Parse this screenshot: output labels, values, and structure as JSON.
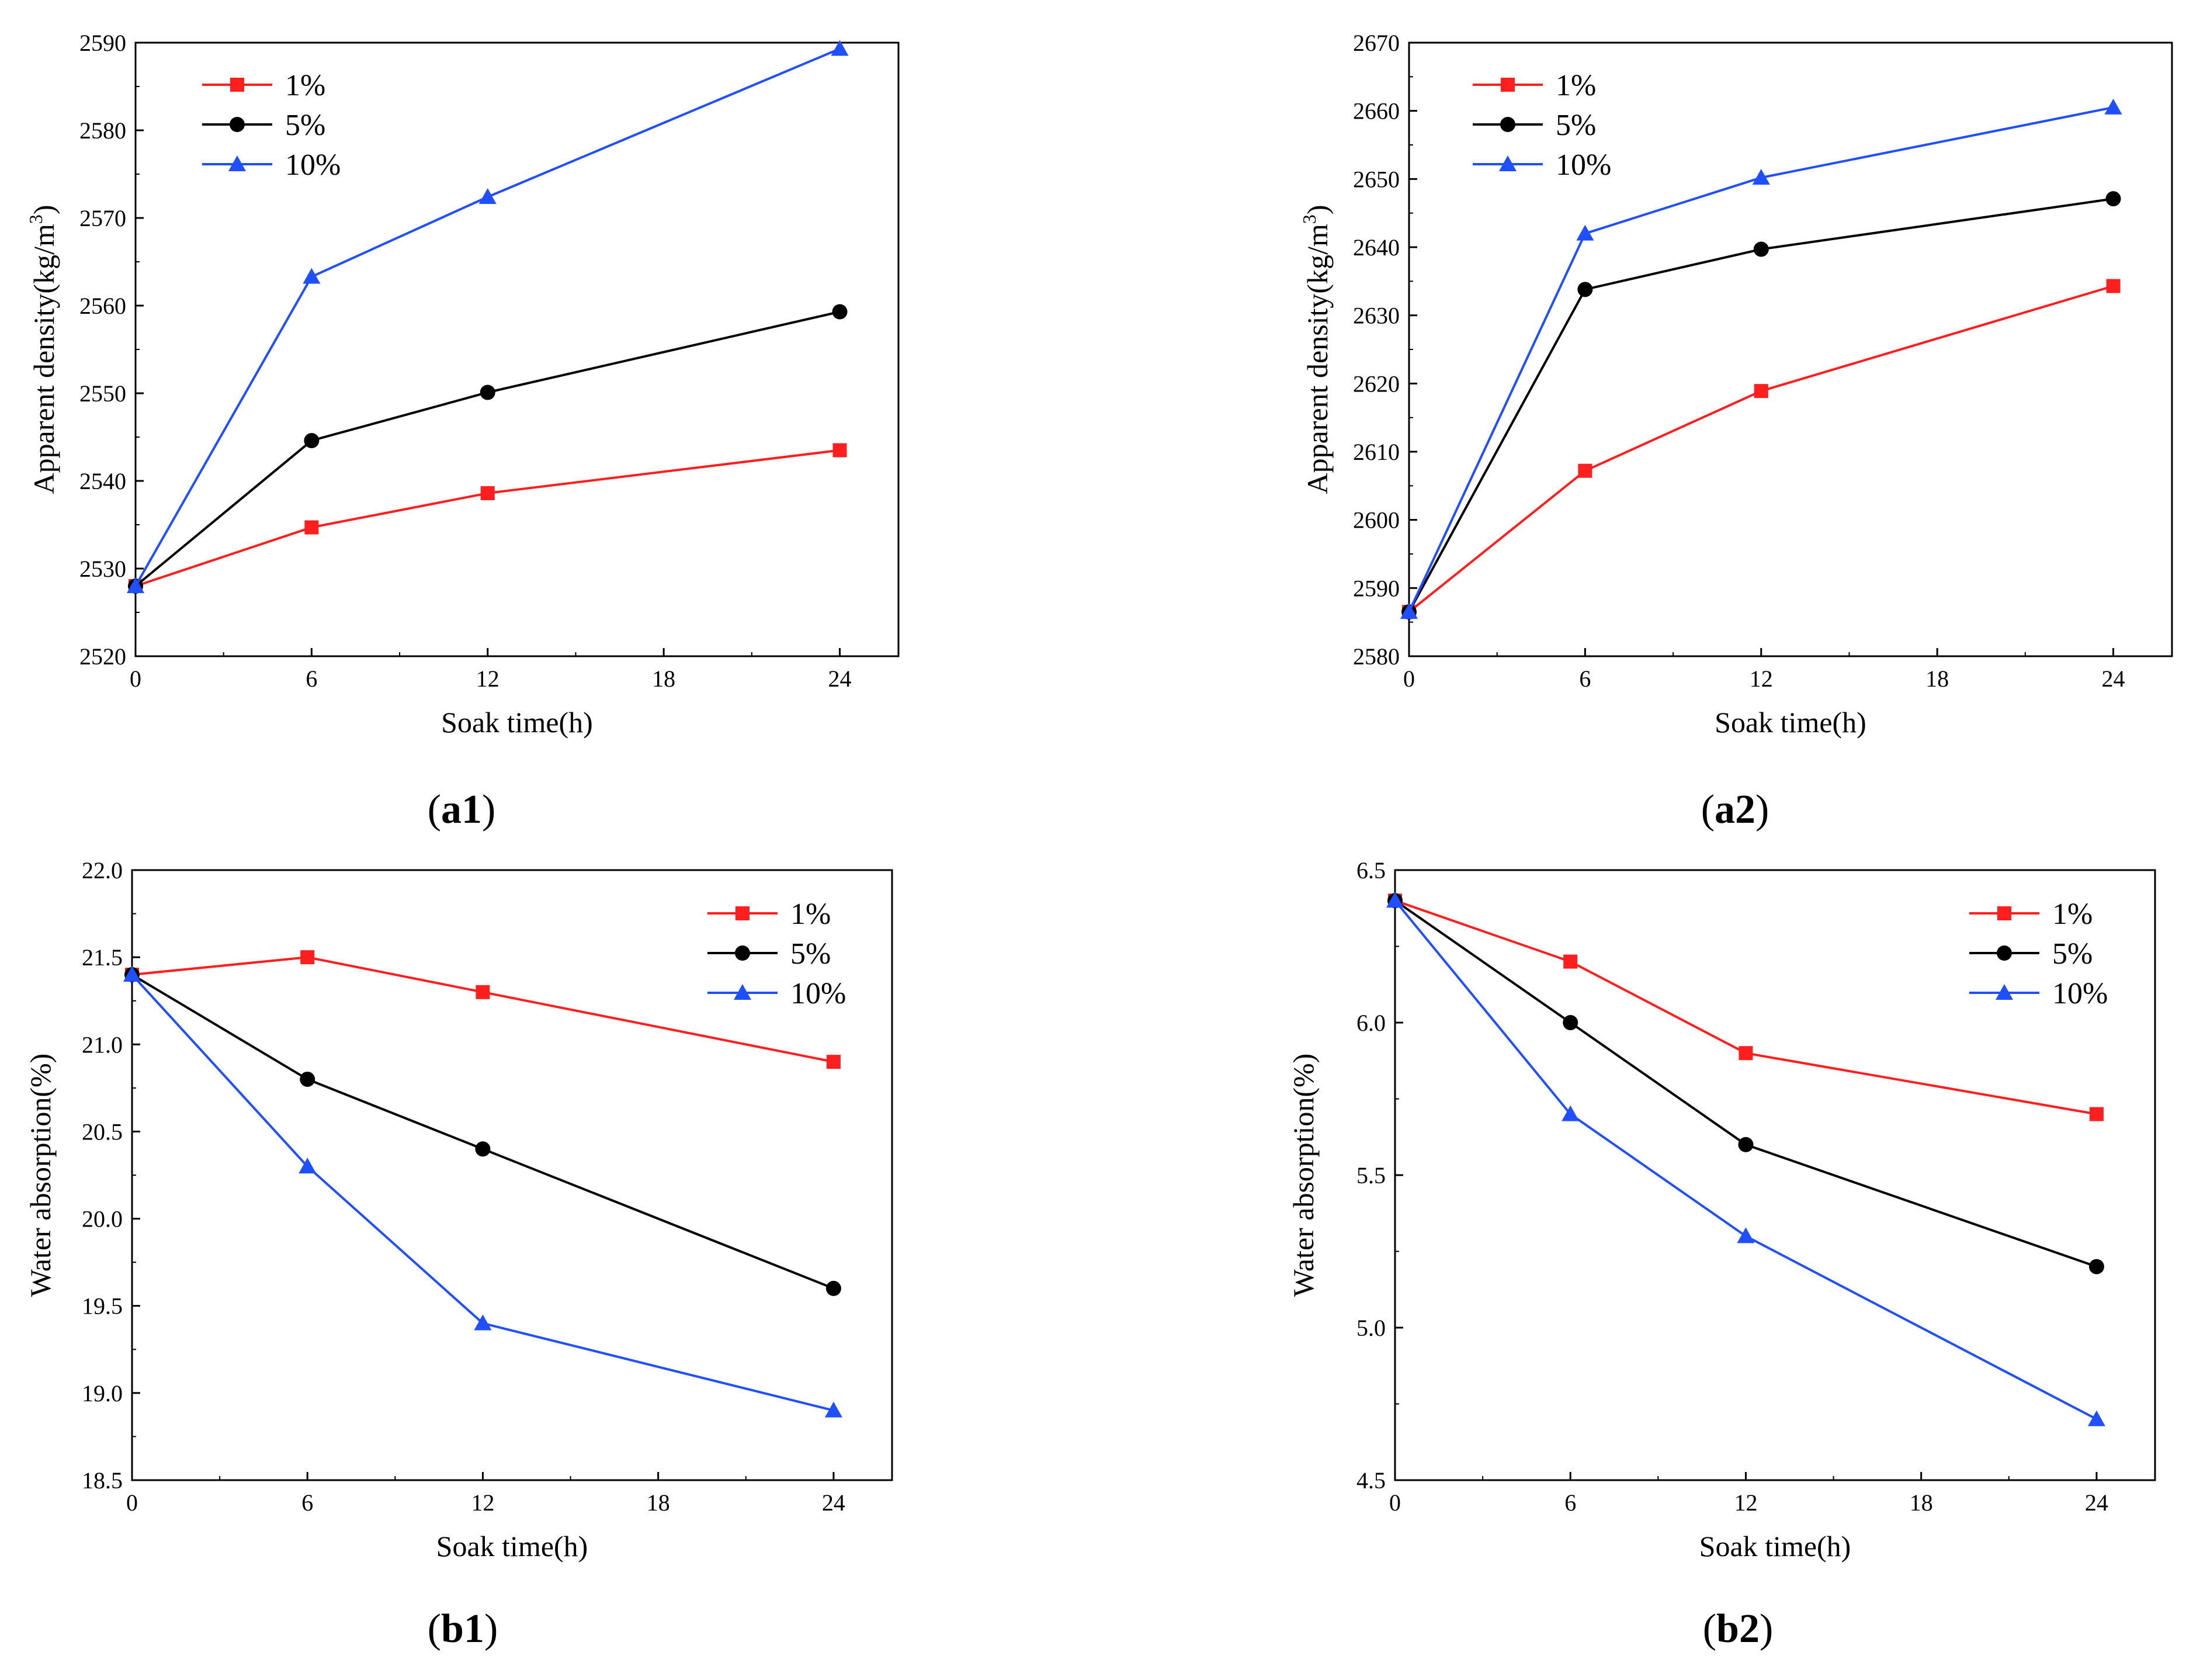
{
  "figure": {
    "panels": [
      "a1",
      "a2",
      "b1",
      "b2"
    ]
  },
  "colors": {
    "red": "#ff1f1f",
    "black": "#000000",
    "blue": "#1f4fff"
  },
  "chart_data": [
    {
      "id": "a1",
      "type": "line",
      "caption": "a1",
      "xlabel": "Soak time(h)",
      "ylabel": "Apparent density(kg/m3)",
      "ylabel_base": "Apparent density(kg/m",
      "ylabel_sup": "3",
      "ylabel_end": ")",
      "xlim": [
        0,
        26
      ],
      "ylim": [
        2520,
        2590
      ],
      "xticks": [
        0,
        6,
        12,
        18,
        24
      ],
      "xtick_labels": [
        "0",
        "6",
        "12",
        "18",
        "24"
      ],
      "yticks": [
        2520,
        2530,
        2540,
        2550,
        2560,
        2570,
        2580,
        2590
      ],
      "ytick_labels": [
        "2520",
        "2530",
        "2540",
        "2550",
        "2560",
        "2570",
        "2580",
        "2590"
      ],
      "legend_position": "top-left",
      "x": [
        0,
        6,
        12,
        24
      ],
      "series": [
        {
          "name": "1%",
          "marker": "square",
          "color": "#ff1f1f",
          "values": [
            2528,
            2534.7,
            2538.6,
            2543.5
          ]
        },
        {
          "name": "5%",
          "marker": "circle",
          "color": "#000000",
          "values": [
            2528,
            2544.6,
            2550.1,
            2559.3
          ]
        },
        {
          "name": "10%",
          "marker": "triangle",
          "color": "#1f4fff",
          "values": [
            2528,
            2563.3,
            2572.4,
            2589.3
          ]
        }
      ]
    },
    {
      "id": "a2",
      "type": "line",
      "caption": "a2",
      "xlabel": "Soak time(h)",
      "ylabel": "Apparent density(kg/m3)",
      "ylabel_base": "Apparent density(kg/m",
      "ylabel_sup": "3",
      "ylabel_end": ")",
      "xlim": [
        0,
        26
      ],
      "ylim": [
        2580,
        2670
      ],
      "xticks": [
        0,
        6,
        12,
        18,
        24
      ],
      "xtick_labels": [
        "0",
        "6",
        "12",
        "18",
        "24"
      ],
      "yticks": [
        2580,
        2590,
        2600,
        2610,
        2620,
        2630,
        2640,
        2650,
        2660,
        2670
      ],
      "ytick_labels": [
        "2580",
        "2590",
        "2600",
        "2610",
        "2620",
        "2630",
        "2640",
        "2650",
        "2660",
        "2670"
      ],
      "legend_position": "top-left",
      "x": [
        0,
        6,
        12,
        24
      ],
      "series": [
        {
          "name": "1%",
          "marker": "square",
          "color": "#ff1f1f",
          "values": [
            2586.5,
            2607.2,
            2618.9,
            2634.3
          ]
        },
        {
          "name": "5%",
          "marker": "circle",
          "color": "#000000",
          "values": [
            2586.5,
            2633.8,
            2639.7,
            2647.1
          ]
        },
        {
          "name": "10%",
          "marker": "triangle",
          "color": "#1f4fff",
          "values": [
            2586.5,
            2642.0,
            2650.2,
            2660.5
          ]
        }
      ]
    },
    {
      "id": "b1",
      "type": "line",
      "caption": "b1",
      "xlabel": "Soak time(h)",
      "ylabel": "Water absorption(%)",
      "xlim": [
        0,
        26
      ],
      "ylim": [
        18.5,
        22.0
      ],
      "xticks": [
        0,
        6,
        12,
        18,
        24
      ],
      "xtick_labels": [
        "0",
        "6",
        "12",
        "18",
        "24"
      ],
      "yticks": [
        18.5,
        19.0,
        19.5,
        20.0,
        20.5,
        21.0,
        21.5,
        22.0
      ],
      "ytick_labels": [
        "18.5",
        "19.0",
        "19.5",
        "20.0",
        "20.5",
        "21.0",
        "21.5",
        "22.0"
      ],
      "legend_position": "top-right",
      "x": [
        0,
        6,
        12,
        24
      ],
      "series": [
        {
          "name": "1%",
          "marker": "square",
          "color": "#ff1f1f",
          "values": [
            21.4,
            21.5,
            21.3,
            20.9
          ]
        },
        {
          "name": "5%",
          "marker": "circle",
          "color": "#000000",
          "values": [
            21.4,
            20.8,
            20.4,
            19.6
          ]
        },
        {
          "name": "10%",
          "marker": "triangle",
          "color": "#1f4fff",
          "values": [
            21.4,
            20.3,
            19.4,
            18.9
          ]
        }
      ]
    },
    {
      "id": "b2",
      "type": "line",
      "caption": "b2",
      "xlabel": "Soak time(h)",
      "ylabel": "Water absorption(%)",
      "xlim": [
        0,
        26
      ],
      "ylim": [
        4.5,
        6.5
      ],
      "xticks": [
        0,
        6,
        12,
        18,
        24
      ],
      "xtick_labels": [
        "0",
        "6",
        "12",
        "18",
        "24"
      ],
      "yticks": [
        4.5,
        5.0,
        5.5,
        6.0,
        6.5
      ],
      "ytick_labels": [
        "4.5",
        "5.0",
        "5.5",
        "6.0",
        "6.5"
      ],
      "legend_position": "top-right",
      "x": [
        0,
        6,
        12,
        24
      ],
      "series": [
        {
          "name": "1%",
          "marker": "square",
          "color": "#ff1f1f",
          "values": [
            6.4,
            6.2,
            5.9,
            5.7
          ]
        },
        {
          "name": "5%",
          "marker": "circle",
          "color": "#000000",
          "values": [
            6.4,
            6.0,
            5.6,
            5.2
          ]
        },
        {
          "name": "10%",
          "marker": "triangle",
          "color": "#1f4fff",
          "values": [
            6.4,
            5.7,
            5.3,
            4.7
          ]
        }
      ]
    }
  ]
}
